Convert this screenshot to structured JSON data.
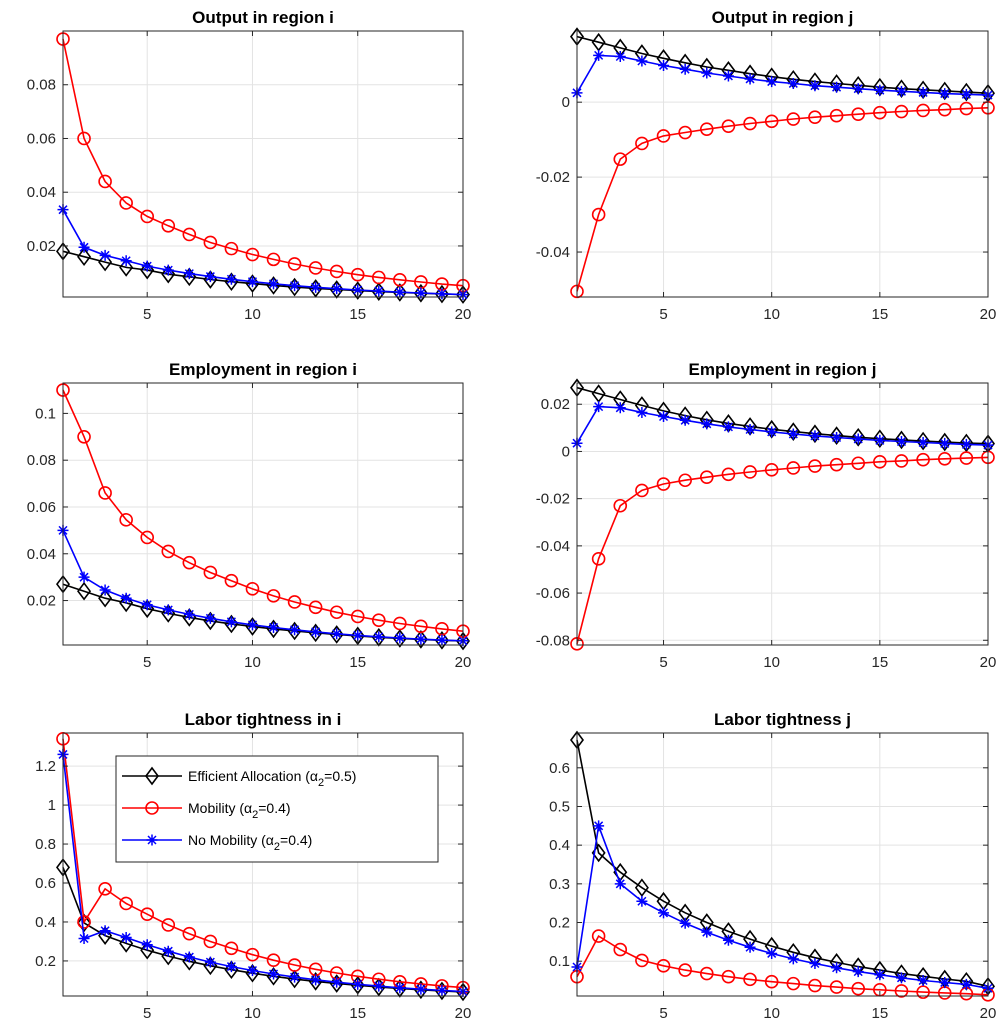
{
  "chart_data": [
    {
      "type": "line",
      "title": "Output in region i",
      "x": [
        1,
        2,
        3,
        4,
        5,
        6,
        7,
        8,
        9,
        10,
        11,
        12,
        13,
        14,
        15,
        16,
        17,
        18,
        19,
        20
      ],
      "xlim": [
        1,
        20
      ],
      "ylim": [
        0.001,
        0.1
      ],
      "xticks": [
        5,
        10,
        15,
        20
      ],
      "yticks": [
        0.02,
        0.04,
        0.06,
        0.08
      ],
      "xticklabels": [
        "5",
        "10",
        "15",
        "20"
      ],
      "yticklabels": [
        "0.02",
        "0.04",
        "0.06",
        "0.08"
      ],
      "grid": true,
      "series": [
        {
          "name": "Efficient Allocation",
          "color": "#000000",
          "marker": "diamond",
          "values": [
            0.018,
            0.016,
            0.014,
            0.012,
            0.011,
            0.0095,
            0.0085,
            0.0075,
            0.0067,
            0.006,
            0.0053,
            0.0047,
            0.0042,
            0.0038,
            0.0034,
            0.003,
            0.0027,
            0.0024,
            0.0021,
            0.0019
          ]
        },
        {
          "name": "Mobility",
          "color": "#ff0000",
          "marker": "circle",
          "values": [
            0.097,
            0.06,
            0.044,
            0.036,
            0.031,
            0.0275,
            0.0243,
            0.0213,
            0.019,
            0.0168,
            0.015,
            0.0133,
            0.0118,
            0.0105,
            0.0093,
            0.0083,
            0.0074,
            0.0066,
            0.0058,
            0.0052
          ]
        },
        {
          "name": "No Mobility",
          "color": "#0000ff",
          "marker": "star",
          "values": [
            0.0335,
            0.0195,
            0.0165,
            0.0145,
            0.0125,
            0.011,
            0.0097,
            0.0086,
            0.0076,
            0.0067,
            0.0059,
            0.0052,
            0.0046,
            0.0041,
            0.0036,
            0.0032,
            0.0028,
            0.0025,
            0.0022,
            0.0019
          ]
        }
      ]
    },
    {
      "type": "line",
      "title": "Output in region j",
      "x": [
        1,
        2,
        3,
        4,
        5,
        6,
        7,
        8,
        9,
        10,
        11,
        12,
        13,
        14,
        15,
        16,
        17,
        18,
        19,
        20
      ],
      "xlim": [
        1,
        20
      ],
      "ylim": [
        -0.052,
        0.019
      ],
      "xticks": [
        5,
        10,
        15,
        20
      ],
      "yticks": [
        -0.04,
        -0.02,
        0
      ],
      "xticklabels": [
        "5",
        "10",
        "15",
        "20"
      ],
      "yticklabels": [
        "-0.04",
        "-0.02",
        "0"
      ],
      "grid": true,
      "series": [
        {
          "name": "Efficient Allocation",
          "color": "#000000",
          "marker": "diamond",
          "values": [
            0.0175,
            0.016,
            0.0145,
            0.013,
            0.0117,
            0.0105,
            0.0094,
            0.0085,
            0.0076,
            0.0068,
            0.0061,
            0.0055,
            0.005,
            0.0045,
            0.004,
            0.0036,
            0.0033,
            0.003,
            0.0027,
            0.0024
          ]
        },
        {
          "name": "Mobility",
          "color": "#ff0000",
          "marker": "circle",
          "values": [
            -0.0505,
            -0.03,
            -0.0152,
            -0.011,
            -0.009,
            -0.0081,
            -0.0072,
            -0.0064,
            -0.0057,
            -0.0051,
            -0.0045,
            -0.004,
            -0.0036,
            -0.0032,
            -0.0028,
            -0.0025,
            -0.0022,
            -0.002,
            -0.0017,
            -0.0015
          ]
        },
        {
          "name": "No Mobility",
          "color": "#0000ff",
          "marker": "star",
          "values": [
            0.0025,
            0.0125,
            0.0122,
            0.011,
            0.0098,
            0.0088,
            0.0078,
            0.007,
            0.0062,
            0.0055,
            0.005,
            0.0044,
            0.004,
            0.0036,
            0.0032,
            0.0029,
            0.0026,
            0.0023,
            0.0021,
            0.0019
          ]
        }
      ]
    },
    {
      "type": "line",
      "title": "Employment in region i",
      "x": [
        1,
        2,
        3,
        4,
        5,
        6,
        7,
        8,
        9,
        10,
        11,
        12,
        13,
        14,
        15,
        16,
        17,
        18,
        19,
        20
      ],
      "xlim": [
        1,
        20
      ],
      "ylim": [
        0.001,
        0.113
      ],
      "xticks": [
        5,
        10,
        15,
        20
      ],
      "yticks": [
        0.02,
        0.04,
        0.06,
        0.08,
        0.1
      ],
      "xticklabels": [
        "5",
        "10",
        "15",
        "20"
      ],
      "yticklabels": [
        "0.02",
        "0.04",
        "0.06",
        "0.08",
        "0.1"
      ],
      "grid": true,
      "series": [
        {
          "name": "Efficient Allocation",
          "color": "#000000",
          "marker": "diamond",
          "values": [
            0.027,
            0.024,
            0.021,
            0.019,
            0.0165,
            0.0145,
            0.0128,
            0.0113,
            0.01,
            0.0089,
            0.0079,
            0.007,
            0.0062,
            0.0055,
            0.0049,
            0.0043,
            0.0038,
            0.0034,
            0.003,
            0.0027
          ]
        },
        {
          "name": "Mobility",
          "color": "#ff0000",
          "marker": "circle",
          "values": [
            0.11,
            0.09,
            0.066,
            0.0545,
            0.047,
            0.041,
            0.0362,
            0.032,
            0.0285,
            0.025,
            0.022,
            0.0194,
            0.0171,
            0.015,
            0.0132,
            0.0116,
            0.0102,
            0.009,
            0.0079,
            0.0069
          ]
        },
        {
          "name": "No Mobility",
          "color": "#0000ff",
          "marker": "star",
          "values": [
            0.05,
            0.03,
            0.0245,
            0.021,
            0.0182,
            0.016,
            0.0141,
            0.0124,
            0.0109,
            0.0096,
            0.0085,
            0.0075,
            0.0066,
            0.0058,
            0.0051,
            0.0045,
            0.004,
            0.0035,
            0.0031,
            0.0028
          ]
        }
      ]
    },
    {
      "type": "line",
      "title": "Employment in region j",
      "x": [
        1,
        2,
        3,
        4,
        5,
        6,
        7,
        8,
        9,
        10,
        11,
        12,
        13,
        14,
        15,
        16,
        17,
        18,
        19,
        20
      ],
      "xlim": [
        1,
        20
      ],
      "ylim": [
        -0.082,
        0.029
      ],
      "xticks": [
        5,
        10,
        15,
        20
      ],
      "yticks": [
        -0.08,
        -0.06,
        -0.04,
        -0.02,
        0,
        0.02
      ],
      "xticklabels": [
        "5",
        "10",
        "15",
        "20"
      ],
      "yticklabels": [
        "-0.08",
        "-0.06",
        "-0.04",
        "-0.02",
        "0",
        "0.02"
      ],
      "grid": true,
      "series": [
        {
          "name": "Efficient Allocation",
          "color": "#000000",
          "marker": "diamond",
          "values": [
            0.027,
            0.0245,
            0.022,
            0.0195,
            0.0172,
            0.0152,
            0.0134,
            0.0119,
            0.0106,
            0.0094,
            0.0084,
            0.0075,
            0.0067,
            0.006,
            0.0054,
            0.0049,
            0.0044,
            0.004,
            0.0036,
            0.0033
          ]
        },
        {
          "name": "Mobility",
          "color": "#ff0000",
          "marker": "circle",
          "values": [
            -0.0815,
            -0.0455,
            -0.023,
            -0.0165,
            -0.0138,
            -0.0122,
            -0.0109,
            -0.0097,
            -0.0087,
            -0.0078,
            -0.007,
            -0.0062,
            -0.0056,
            -0.005,
            -0.0044,
            -0.004,
            -0.0035,
            -0.0031,
            -0.0028,
            -0.0025
          ]
        },
        {
          "name": "No Mobility",
          "color": "#0000ff",
          "marker": "star",
          "values": [
            0.0035,
            0.019,
            0.0185,
            0.0165,
            0.0148,
            0.0132,
            0.0117,
            0.0104,
            0.0093,
            0.0083,
            0.0074,
            0.0066,
            0.0059,
            0.0053,
            0.0047,
            0.0042,
            0.0038,
            0.0034,
            0.003,
            0.0027
          ]
        }
      ]
    },
    {
      "type": "line",
      "title": "Labor tightness in i",
      "x": [
        1,
        2,
        3,
        4,
        5,
        6,
        7,
        8,
        9,
        10,
        11,
        12,
        13,
        14,
        15,
        16,
        17,
        18,
        19,
        20
      ],
      "xlim": [
        1,
        20
      ],
      "ylim": [
        0.02,
        1.37
      ],
      "xticks": [
        5,
        10,
        15,
        20
      ],
      "yticks": [
        0.2,
        0.4,
        0.6,
        0.8,
        1,
        1.2
      ],
      "xticklabels": [
        "5",
        "10",
        "15",
        "20"
      ],
      "yticklabels": [
        "0.2",
        "0.4",
        "0.6",
        "0.8",
        "1",
        "1.2"
      ],
      "grid": true,
      "legend": {
        "position": "top-right",
        "entries": [
          {
            "label": "Efficient Allocation (α",
            "sub": "2",
            "tail": "=0.5)"
          },
          {
            "label": "Mobility (α",
            "sub": "2",
            "tail": "=0.4)"
          },
          {
            "label": "No Mobility (α",
            "sub": "2",
            "tail": "=0.4)"
          }
        ]
      },
      "series": [
        {
          "name": "Efficient Allocation",
          "color": "#000000",
          "marker": "diamond",
          "values": [
            0.68,
            0.395,
            0.33,
            0.29,
            0.255,
            0.225,
            0.198,
            0.175,
            0.155,
            0.137,
            0.121,
            0.107,
            0.095,
            0.084,
            0.075,
            0.066,
            0.059,
            0.052,
            0.046,
            0.041
          ]
        },
        {
          "name": "Mobility",
          "color": "#ff0000",
          "marker": "circle",
          "values": [
            1.34,
            0.4,
            0.57,
            0.495,
            0.44,
            0.385,
            0.34,
            0.3,
            0.265,
            0.232,
            0.204,
            0.179,
            0.157,
            0.138,
            0.121,
            0.106,
            0.093,
            0.082,
            0.072,
            0.063
          ]
        },
        {
          "name": "No Mobility",
          "color": "#0000ff",
          "marker": "star",
          "values": [
            1.26,
            0.315,
            0.355,
            0.32,
            0.283,
            0.25,
            0.22,
            0.194,
            0.171,
            0.151,
            0.133,
            0.117,
            0.103,
            0.091,
            0.08,
            0.071,
            0.062,
            0.055,
            0.049,
            0.043
          ]
        }
      ]
    },
    {
      "type": "line",
      "title": "Labor tightness j",
      "x": [
        1,
        2,
        3,
        4,
        5,
        6,
        7,
        8,
        9,
        10,
        11,
        12,
        13,
        14,
        15,
        16,
        17,
        18,
        19,
        20
      ],
      "xlim": [
        1,
        20
      ],
      "ylim": [
        0.01,
        0.69
      ],
      "xticks": [
        5,
        10,
        15,
        20
      ],
      "yticks": [
        0.1,
        0.2,
        0.3,
        0.4,
        0.5,
        0.6
      ],
      "xticklabels": [
        "5",
        "10",
        "15",
        "20"
      ],
      "yticklabels": [
        "0.1",
        "0.2",
        "0.3",
        "0.4",
        "0.5",
        "0.6"
      ],
      "grid": true,
      "series": [
        {
          "name": "Efficient Allocation",
          "color": "#000000",
          "marker": "diamond",
          "values": [
            0.672,
            0.38,
            0.33,
            0.29,
            0.255,
            0.225,
            0.2,
            0.177,
            0.157,
            0.139,
            0.123,
            0.109,
            0.097,
            0.086,
            0.077,
            0.068,
            0.061,
            0.054,
            0.048,
            0.035
          ]
        },
        {
          "name": "Mobility",
          "color": "#ff0000",
          "marker": "circle",
          "values": [
            0.06,
            0.165,
            0.13,
            0.102,
            0.088,
            0.077,
            0.068,
            0.06,
            0.053,
            0.047,
            0.042,
            0.037,
            0.033,
            0.029,
            0.026,
            0.023,
            0.02,
            0.018,
            0.016,
            0.013
          ]
        },
        {
          "name": "No Mobility",
          "color": "#0000ff",
          "marker": "star",
          "values": [
            0.085,
            0.45,
            0.3,
            0.255,
            0.225,
            0.198,
            0.175,
            0.154,
            0.136,
            0.12,
            0.106,
            0.094,
            0.083,
            0.073,
            0.065,
            0.057,
            0.05,
            0.045,
            0.04,
            0.03
          ]
        }
      ]
    }
  ]
}
